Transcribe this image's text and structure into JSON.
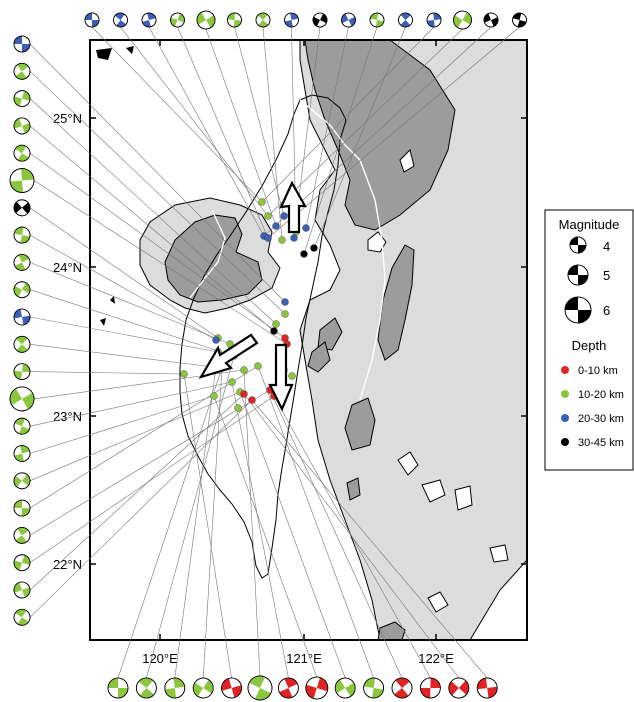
{
  "map": {
    "lat_labels": [
      "25°N",
      "24°N",
      "23°N",
      "22°N"
    ],
    "lon_labels": [
      "120°E",
      "121°E",
      "122°E"
    ]
  },
  "legend": {
    "magnitude_title": "Magnitude",
    "magnitudes": [
      "4",
      "5",
      "6"
    ],
    "depth_title": "Depth",
    "depth_classes": [
      {
        "label": "0-10 km",
        "color": "#e02424"
      },
      {
        "label": "10-20 km",
        "color": "#8cc63f"
      },
      {
        "label": "20-30 km",
        "color": "#3b5fb5"
      },
      {
        "label": "30-45 km",
        "color": "#000000"
      }
    ]
  },
  "colors": {
    "shallow": "#e02424",
    "intermediate": "#8cc63f",
    "deep": "#3b5fb5",
    "deepest": "#000000",
    "light_fill": "#dcdcdc",
    "dark_fill": "#9c9c9c"
  },
  "events": {
    "top": [
      "blue",
      "blue",
      "blue",
      "green",
      "green",
      "green",
      "green",
      "blue",
      "black",
      "blue",
      "green",
      "blue",
      "blue",
      "green",
      "black",
      "black"
    ],
    "left": [
      "blue",
      "green",
      "green",
      "green",
      "green",
      "green",
      "black",
      "green",
      "green",
      "green",
      "blue",
      "green",
      "green",
      "green",
      "green",
      "green",
      "green",
      "green",
      "green",
      "green",
      "green",
      "green"
    ],
    "bottom": [
      "green",
      "green",
      "green",
      "green",
      "red",
      "green",
      "red",
      "red",
      "green",
      "green",
      "red",
      "red",
      "red",
      "red"
    ]
  },
  "arrows": [
    {
      "name": "arrow-north",
      "direction": "north"
    },
    {
      "name": "arrow-southwest",
      "direction": "southwest"
    },
    {
      "name": "arrow-south",
      "direction": "south"
    }
  ]
}
